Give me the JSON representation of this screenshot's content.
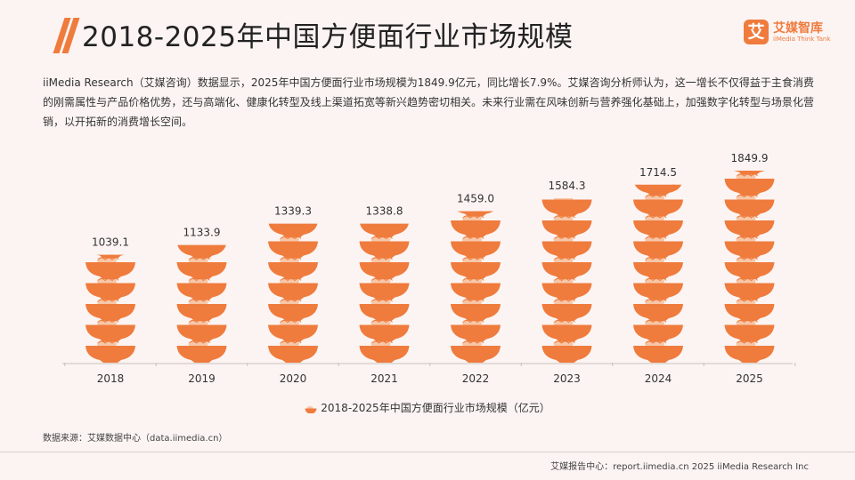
{
  "header": {
    "title": "2018-2025年中国方便面行业市场规模",
    "logo_mark": "艾",
    "logo_cn": "艾媒智库",
    "logo_en": "iiMedia Think Tank"
  },
  "paragraph": "iiMedia Research（艾媒咨询）数据显示，2025年中国方便面行业市场规模为1849.9亿元，同比增长7.9%。艾媒咨询分析师认为，这一增长不仅得益于主食消费的刚需属性与产品价格优势，还与高端化、健康化转型及线上渠道拓宽等新兴趋势密切相关。未来行业需在风味创新与营养强化基础上，加强数字化转型与场景化营销，以开拓新的消费增长空间。",
  "colors": {
    "accent": "#ef7b3d",
    "bowl": "#ef7b3d",
    "noodle": "#f7c7a8",
    "background": "#fbf4f2"
  },
  "chart_data": {
    "type": "bar",
    "title": "",
    "categories": [
      "2018",
      "2019",
      "2020",
      "2021",
      "2022",
      "2023",
      "2024",
      "2025"
    ],
    "series": [
      {
        "name": "2018-2025年中国方便面行业市场规模（亿元）",
        "values": [
          1039.1,
          1133.9,
          1339.3,
          1338.8,
          1459.0,
          1584.3,
          1714.5,
          1849.9
        ]
      }
    ],
    "value_labels": [
      "1039.1",
      "1133.9",
      "1339.3",
      "1338.8",
      "1459.0",
      "1584.3",
      "1714.5",
      "1849.9"
    ],
    "xlabel": "",
    "ylabel": "",
    "ylim": [
      0,
      1900
    ],
    "grid": false,
    "legend": "bottom-center",
    "mark": "noodle-bowl pictograph"
  },
  "legend_label": "2018-2025年中国方便面行业市场规模（亿元）",
  "source": "数据来源：艾媒数据中心（data.iimedia.cn）",
  "footer": "艾媒报告中心：report.iimedia.cn    2025 iiMedia Research Inc"
}
